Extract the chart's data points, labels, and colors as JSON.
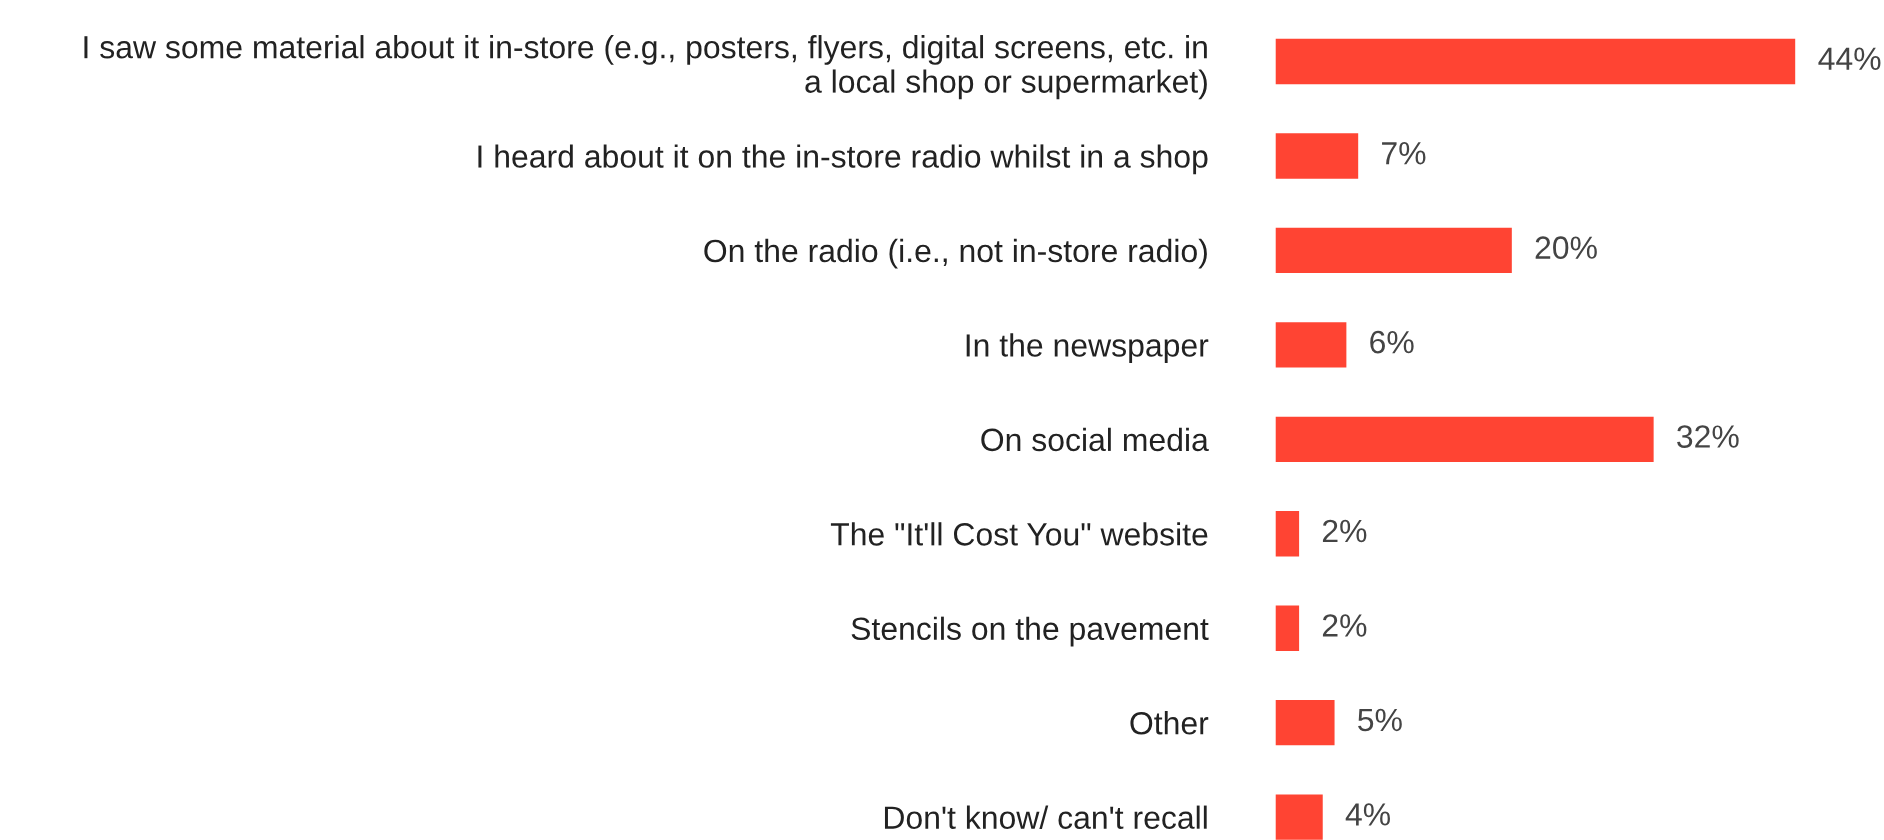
{
  "chart_data": {
    "type": "bar",
    "orientation": "horizontal",
    "categories": [
      "I saw some material about it in-store (e.g., posters, flyers, digital screens, etc. in\na local shop or supermarket)",
      "I heard about it on the in-store radio whilst in a shop",
      "On the radio (i.e., not in-store radio)",
      "In the newspaper",
      "On social media",
      "The \"It'll Cost You\" website",
      "Stencils on the pavement",
      "Other",
      "Don't know/ can't recall"
    ],
    "values": [
      44,
      7,
      20,
      6,
      32,
      2,
      2,
      5,
      4
    ],
    "value_labels": [
      "44%",
      "7%",
      "20%",
      "6%",
      "32%",
      "2%",
      "2%",
      "5%",
      "4%"
    ],
    "color": "#ff4433",
    "grid": false,
    "legend": false
  }
}
